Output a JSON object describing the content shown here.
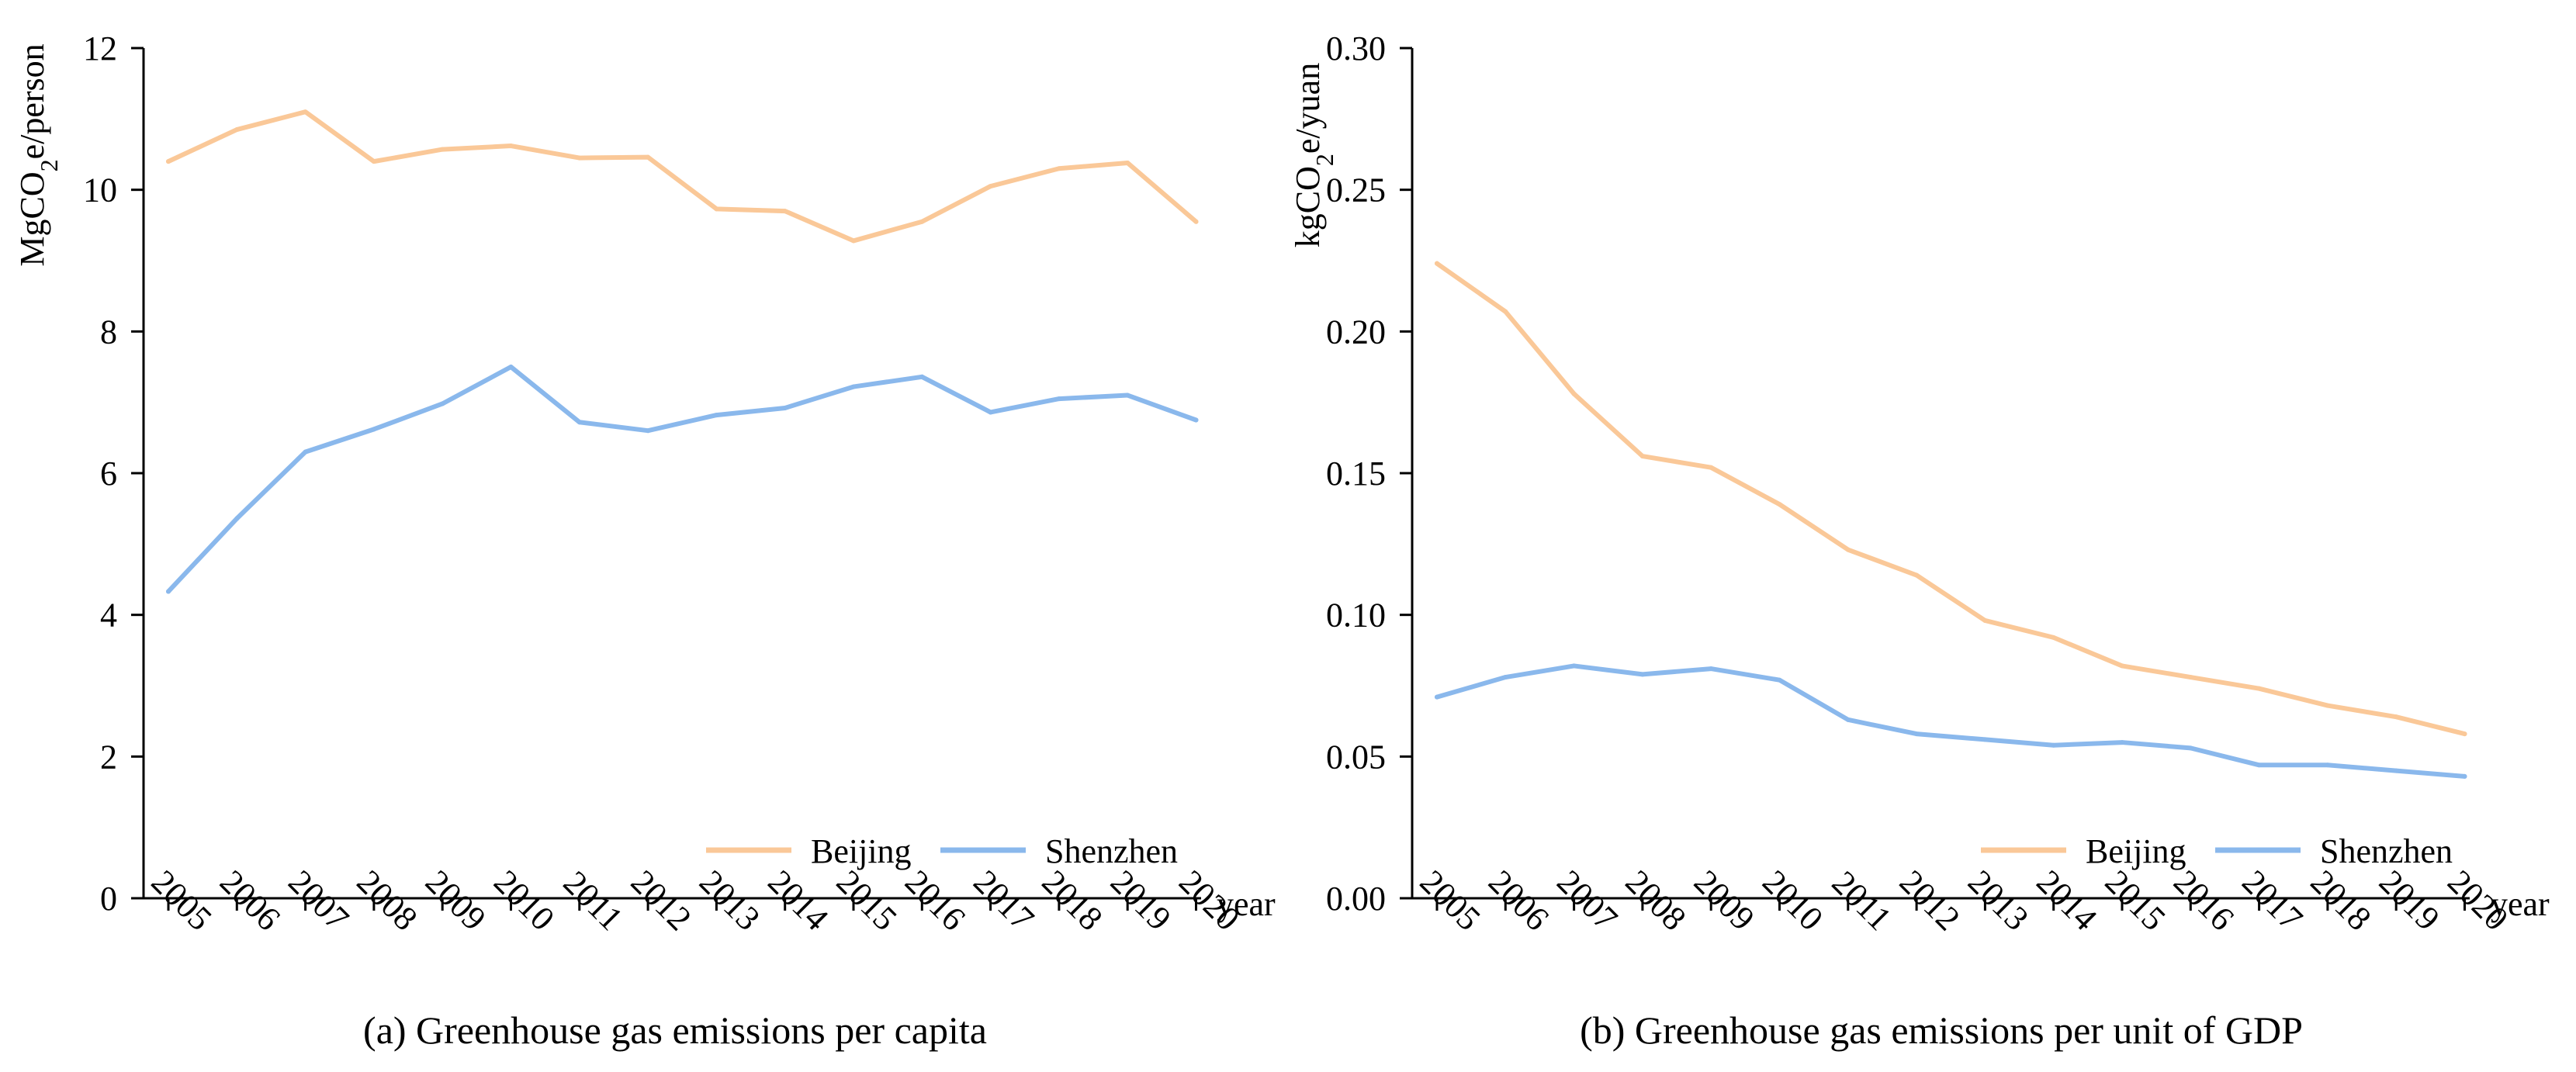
{
  "chart_data": [
    {
      "type": "line",
      "panel": "a",
      "title": "(a) Greenhouse gas emissions per capita",
      "xlabel": "year",
      "ylabel": {
        "prefix": "MgCO",
        "sub": "2",
        "suffix": "e/person"
      },
      "x": [
        "2005",
        "2006",
        "2007",
        "2008",
        "2009",
        "2010",
        "2011",
        "2012",
        "2013",
        "2014",
        "2015",
        "2016",
        "2017",
        "2018",
        "2019",
        "2020"
      ],
      "ylim": [
        0,
        12
      ],
      "yticks": [
        0,
        2,
        4,
        6,
        8,
        10,
        12
      ],
      "ytick_labels": [
        "0",
        "2",
        "4",
        "6",
        "8",
        "10",
        "12"
      ],
      "series": [
        {
          "name": "Beijing",
          "color": "#FAC898",
          "values": [
            10.4,
            10.85,
            11.1,
            10.4,
            10.57,
            10.62,
            10.45,
            10.46,
            9.73,
            9.7,
            9.28,
            9.55,
            10.05,
            10.3,
            10.38,
            9.55
          ]
        },
        {
          "name": "Shenzhen",
          "color": "#8AB8EC",
          "values": [
            4.33,
            5.36,
            6.3,
            6.62,
            6.98,
            7.5,
            6.72,
            6.6,
            6.82,
            6.92,
            7.22,
            7.36,
            6.86,
            7.05,
            7.1,
            6.75
          ]
        }
      ],
      "legend_position": "bottom-right"
    },
    {
      "type": "line",
      "panel": "b",
      "title": "(b) Greenhouse gas emissions per unit of GDP",
      "xlabel": "year",
      "ylabel": {
        "prefix": "kgCO",
        "sub": "2",
        "suffix": "e/yuan"
      },
      "x": [
        "2005",
        "2006",
        "2007",
        "2008",
        "2009",
        "2010",
        "2011",
        "2012",
        "2013",
        "2014",
        "2015",
        "2016",
        "2017",
        "2018",
        "2019",
        "2020"
      ],
      "ylim": [
        0,
        0.3
      ],
      "yticks": [
        0,
        0.05,
        0.1,
        0.15,
        0.2,
        0.25,
        0.3
      ],
      "ytick_labels": [
        "0.00",
        "0.05",
        "0.10",
        "0.15",
        "0.20",
        "0.25",
        "0.30"
      ],
      "series": [
        {
          "name": "Beijing",
          "color": "#FAC898",
          "values": [
            0.224,
            0.207,
            0.178,
            0.156,
            0.152,
            0.139,
            0.123,
            0.114,
            0.098,
            0.092,
            0.082,
            0.078,
            0.074,
            0.068,
            0.064,
            0.058
          ]
        },
        {
          "name": "Shenzhen",
          "color": "#8AB8EC",
          "values": [
            0.071,
            0.078,
            0.082,
            0.079,
            0.081,
            0.077,
            0.063,
            0.058,
            0.056,
            0.054,
            0.055,
            0.053,
            0.047,
            0.047,
            0.045,
            0.043
          ]
        }
      ],
      "legend_position": "bottom-right"
    }
  ]
}
